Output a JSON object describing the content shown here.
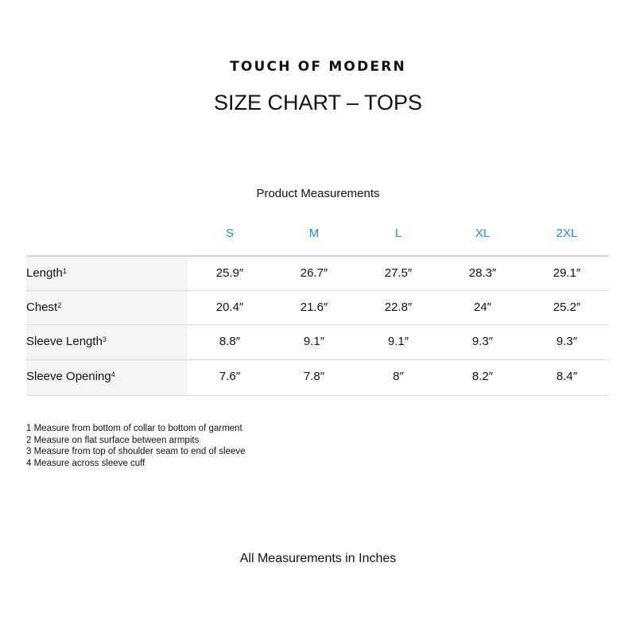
{
  "brand": "TOUCH OF MODERN",
  "title": "SIZE CHART – TOPS",
  "subtitle": "Product Measurements",
  "accent_color": "#1a8fe0",
  "sizes": [
    "S",
    "M",
    "L",
    "XL",
    "2XL"
  ],
  "rows": [
    {
      "label": "Length",
      "note": "1",
      "values": [
        "25.9″",
        "26.7″",
        "27.5″",
        "28.3″",
        "29.1″"
      ]
    },
    {
      "label": "Chest",
      "note": "2",
      "values": [
        "20.4″",
        "21.6″",
        "22.8″",
        "24″",
        "25.2″"
      ]
    },
    {
      "label": "Sleeve Length",
      "note": "3",
      "values": [
        "8.8″",
        "9.1″",
        "9.1″",
        "9.3″",
        "9.3″"
      ]
    },
    {
      "label": "Sleeve Opening",
      "note": "4",
      "values": [
        "7.6″",
        "7.8″",
        "8″",
        "8.2″",
        "8.4″"
      ]
    }
  ],
  "notes": [
    "1 Measure from bottom of collar to bottom of garment",
    "2 Measure on flat surface between armpits",
    "3 Measure from top of shoulder seam to end of sleeve",
    "4 Measure across sleeve cuff"
  ],
  "footer": "All Measurements in Inches"
}
